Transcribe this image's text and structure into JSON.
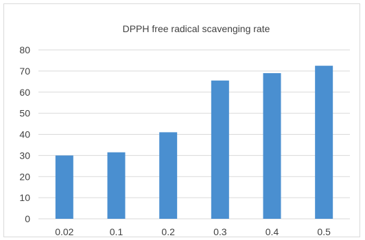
{
  "chart_data": {
    "type": "bar",
    "title": "DPPH free radical scavenging rate",
    "xlabel": "",
    "ylabel": "",
    "categories": [
      "0.02",
      "0.1",
      "0.2",
      "0.3",
      "0.4",
      "0.5"
    ],
    "values": [
      30,
      31.5,
      41,
      65.5,
      69,
      72.5
    ],
    "ylim": [
      0,
      80
    ],
    "yticks": [
      0,
      10,
      20,
      30,
      40,
      50,
      60,
      70,
      80
    ],
    "grid": true,
    "legend": "none",
    "colors": {
      "bar": "#4a8fd0",
      "grid": "#d9d9d9",
      "text": "#404040"
    }
  }
}
